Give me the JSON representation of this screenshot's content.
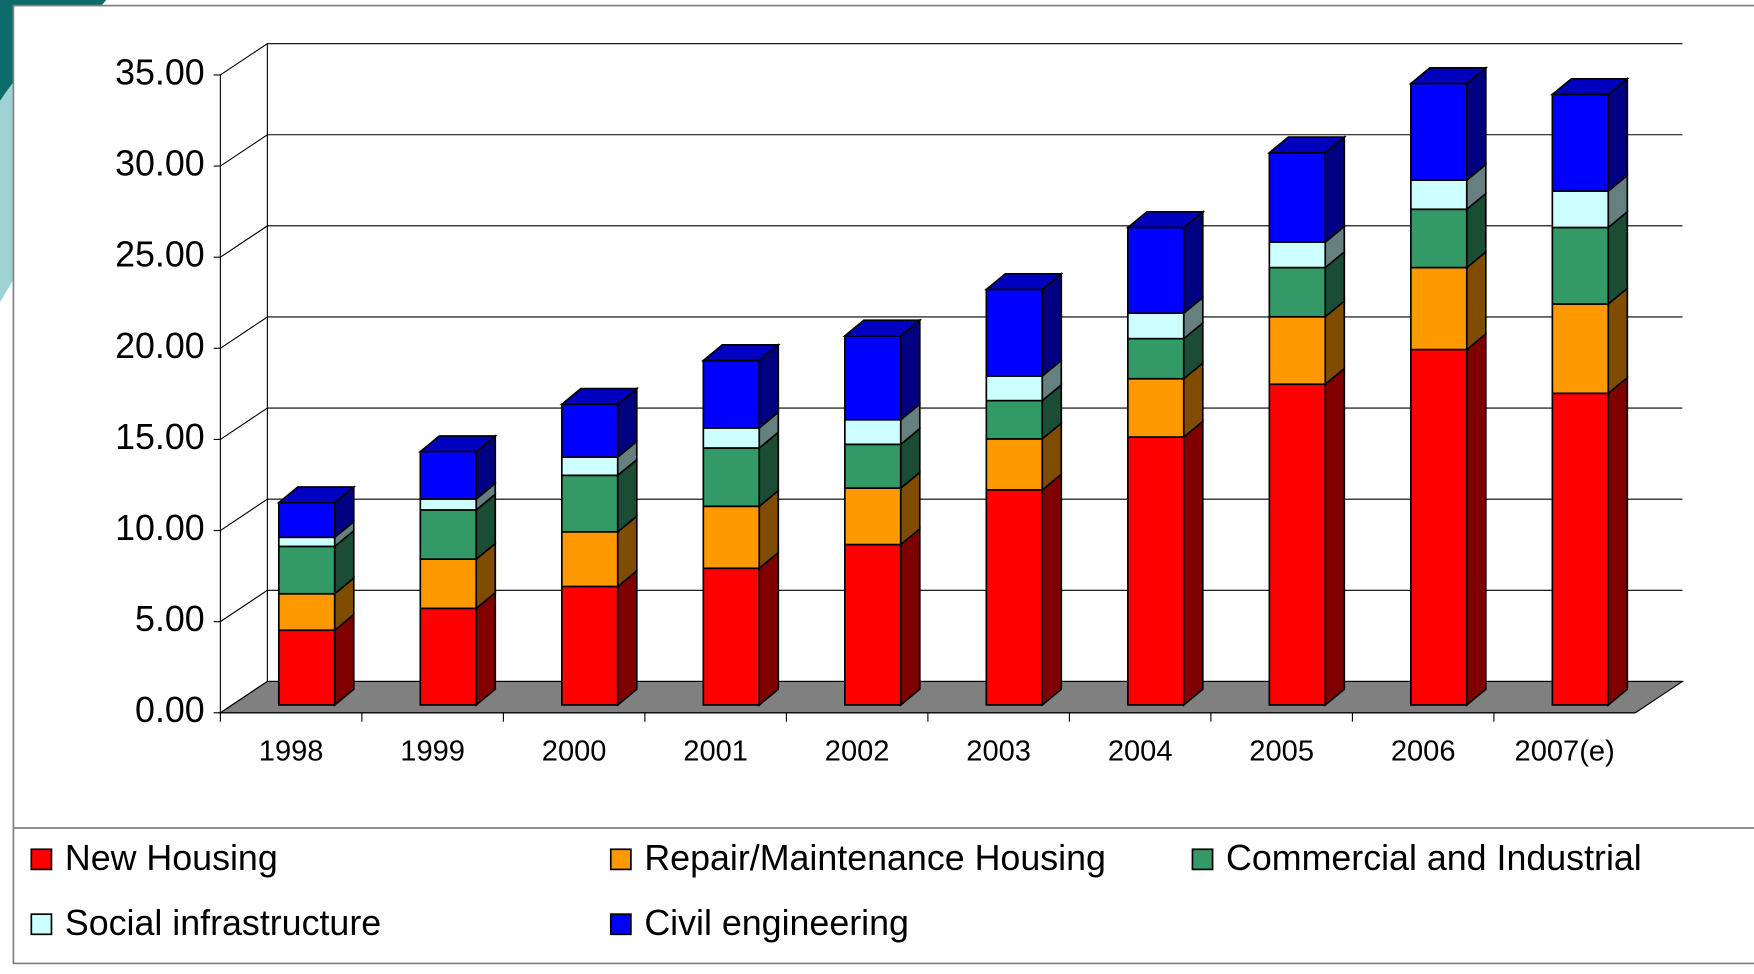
{
  "chart_data": {
    "type": "bar3d_stacked",
    "categories": [
      "1998",
      "1999",
      "2000",
      "2001",
      "2002",
      "2003",
      "2004",
      "2005",
      "2006",
      "2007(e)"
    ],
    "series": [
      {
        "name": "New Housing",
        "color": "#ff0000",
        "values": [
          4.1,
          5.3,
          6.5,
          7.5,
          8.8,
          11.8,
          14.7,
          17.6,
          19.5,
          17.1
        ]
      },
      {
        "name": "Repair/Maintenance Housing",
        "color": "#ff9900",
        "values": [
          2.0,
          2.7,
          3.0,
          3.4,
          3.1,
          2.8,
          3.2,
          3.7,
          4.5,
          4.9
        ]
      },
      {
        "name": "Commercial and Industrial",
        "color": "#339966",
        "values": [
          2.6,
          2.7,
          3.1,
          3.2,
          2.4,
          2.1,
          2.2,
          2.7,
          3.2,
          4.2
        ]
      },
      {
        "name": "Social infrastructure",
        "color": "#ccffff",
        "values": [
          0.5,
          0.6,
          1.0,
          1.1,
          1.35,
          1.35,
          1.4,
          1.4,
          1.6,
          2.0
        ]
      },
      {
        "name": "Civil engineering",
        "color": "#0000ff",
        "values": [
          1.9,
          2.6,
          2.9,
          3.7,
          4.6,
          4.75,
          4.7,
          4.9,
          5.3,
          5.3
        ]
      }
    ],
    "ylim": [
      0,
      35
    ],
    "yticks": [
      {
        "value": 0,
        "label": "0.00"
      },
      {
        "value": 5,
        "label": "5.00"
      },
      {
        "value": 10,
        "label": "10.00"
      },
      {
        "value": 15,
        "label": "15.00"
      },
      {
        "value": 20,
        "label": "20.00"
      },
      {
        "value": 25,
        "label": "25.00"
      },
      {
        "value": 30,
        "label": "30.00"
      },
      {
        "value": 35,
        "label": "35.00"
      }
    ],
    "grid": true,
    "legend": "bottom"
  }
}
